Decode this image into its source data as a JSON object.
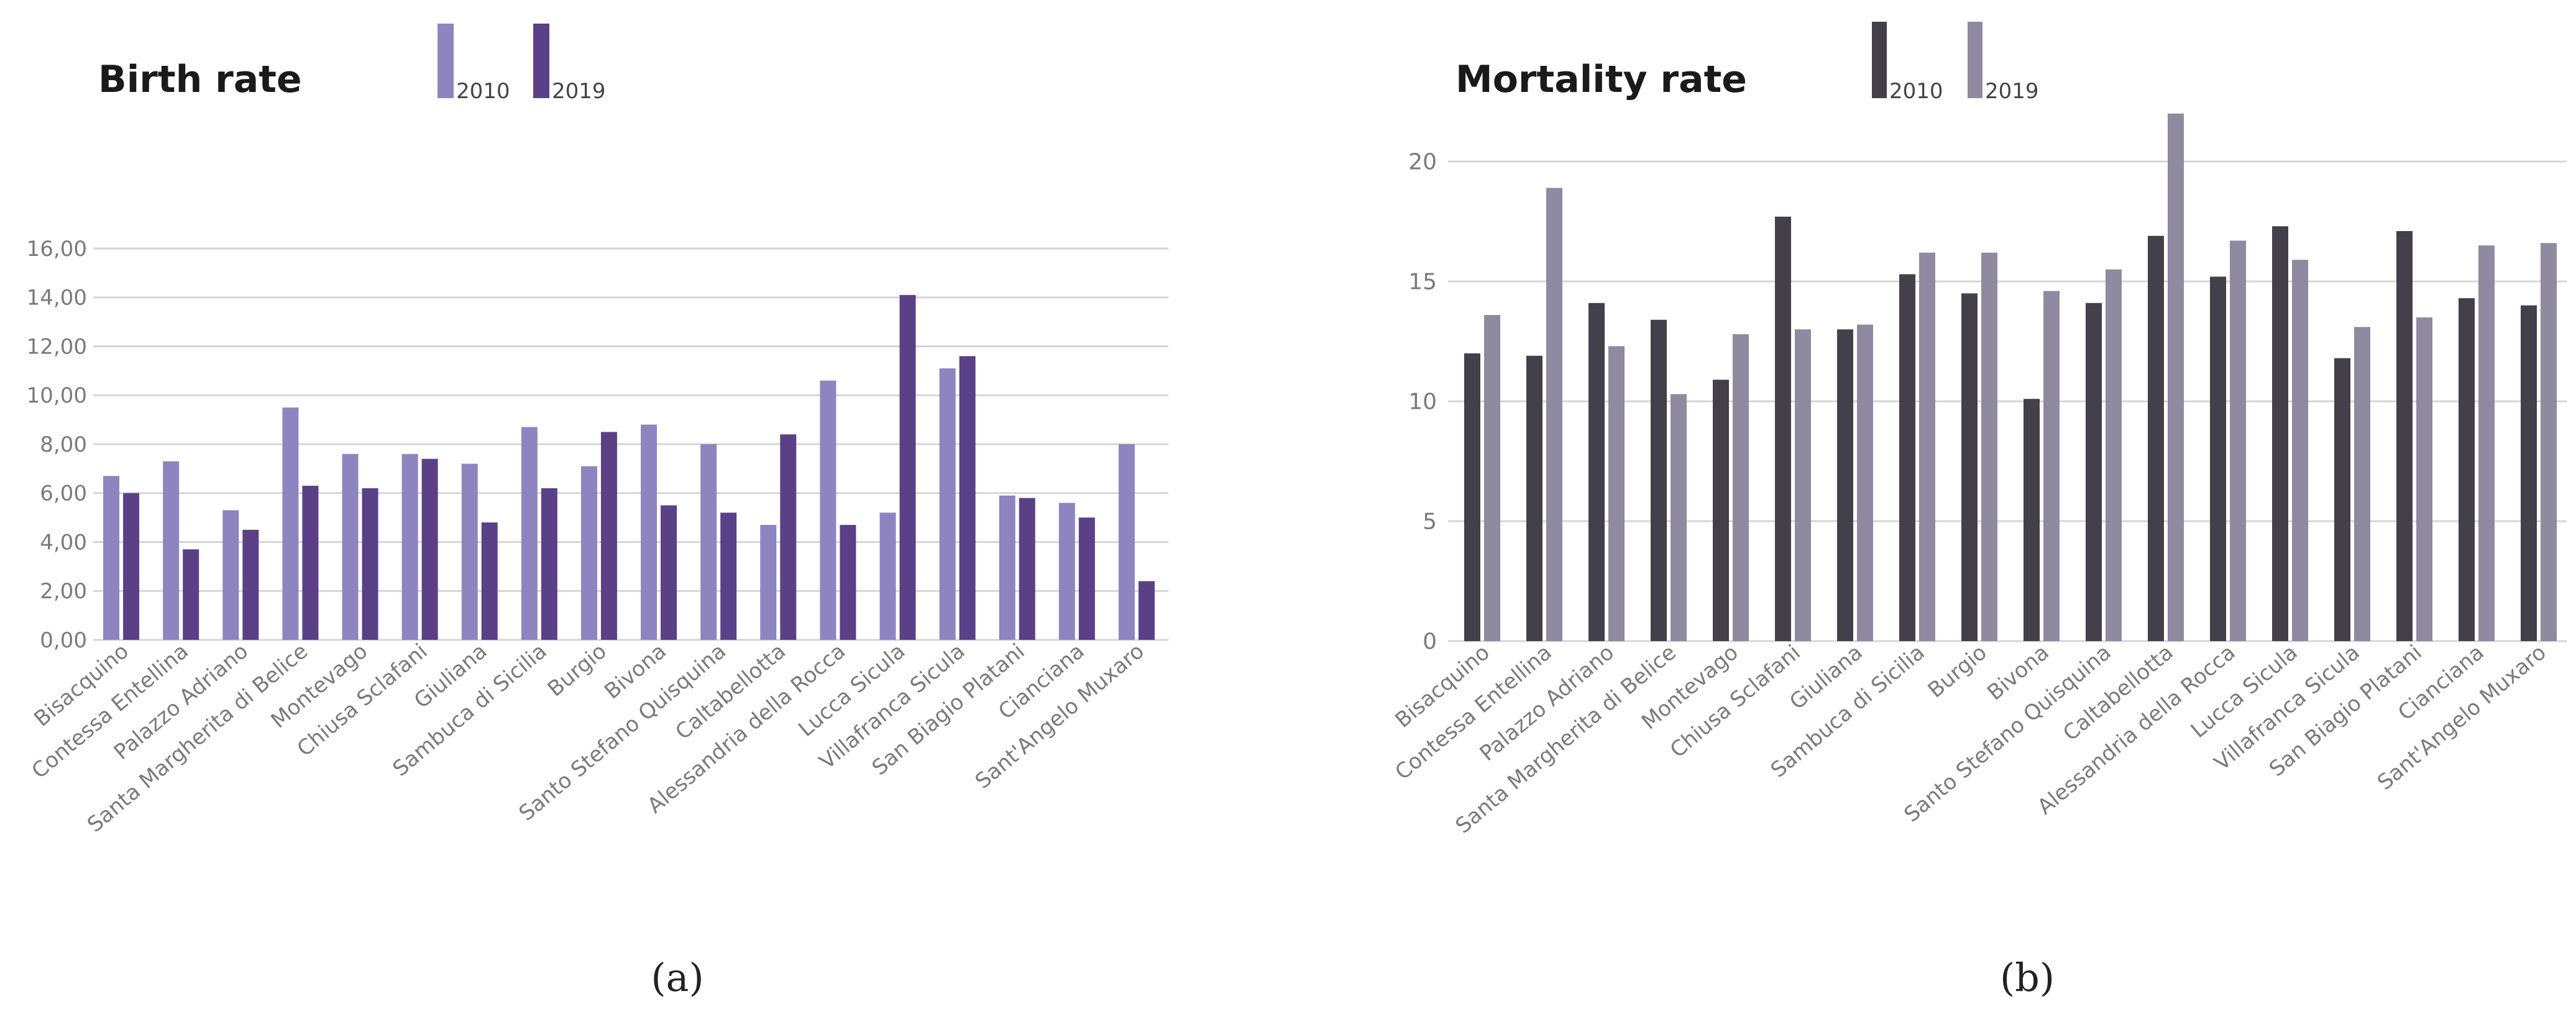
{
  "chart_data": [
    {
      "type": "bar",
      "title": "Birth rate",
      "caption": "(a)",
      "categories": [
        "Bisacquino",
        "Contessa Entellina",
        "Palazzo Adriano",
        "Santa Margherita di Belice",
        "Montevago",
        "Chiusa Sclafani",
        "Giuliana",
        "Sambuca di Sicilia",
        "Burgio",
        "Bivona",
        "Santo Stefano Quisquina",
        "Caltabellotta",
        "Alessandria della Rocca",
        "Lucca Sicula",
        "Villafranca Sicula",
        "San Biagio Platani",
        "Cianciana",
        "Sant'Angelo Muxaro"
      ],
      "series": [
        {
          "name": "2010",
          "color": "#8e85c0",
          "values": [
            6.7,
            7.3,
            5.3,
            9.5,
            7.6,
            7.6,
            7.2,
            8.7,
            7.1,
            8.8,
            8.0,
            4.7,
            10.6,
            5.2,
            11.1,
            5.9,
            5.6,
            8.0
          ]
        },
        {
          "name": "2019",
          "color": "#5a4187",
          "values": [
            6.0,
            3.7,
            4.5,
            6.3,
            6.2,
            7.4,
            4.8,
            6.2,
            8.5,
            5.5,
            5.2,
            8.4,
            4.7,
            14.1,
            11.6,
            5.8,
            5.0,
            2.4
          ]
        }
      ],
      "ylim": [
        0,
        16
      ],
      "yticks": [
        "0,00",
        "2,00",
        "4,00",
        "6,00",
        "8,00",
        "10,00",
        "12,00",
        "14,00",
        "16,00"
      ],
      "ytick_values": [
        0,
        2,
        4,
        6,
        8,
        10,
        12,
        14,
        16
      ],
      "legend": [
        "2010",
        "2019"
      ],
      "xlabel": "",
      "ylabel": ""
    },
    {
      "type": "bar",
      "title": "Mortality rate",
      "caption": "(b)",
      "categories": [
        "Bisacquino",
        "Contessa Entellina",
        "Palazzo Adriano",
        "Santa Margherita di Belice",
        "Montevago",
        "Chiusa Sclafani",
        "Giuliana",
        "Sambuca di Sicilia",
        "Burgio",
        "Bivona",
        "Santo Stefano Quisquina",
        "Caltabellotta",
        "Alessandria della Rocca",
        "Lucca Sicula",
        "Villafranca Sicula",
        "San Biagio Platani",
        "Cianciana",
        "Sant'Angelo Muxaro"
      ],
      "series": [
        {
          "name": "2010",
          "color": "#434049",
          "values": [
            12.0,
            11.9,
            14.1,
            13.4,
            10.9,
            17.7,
            13.0,
            15.3,
            14.5,
            10.1,
            14.1,
            16.9,
            15.2,
            17.3,
            11.8,
            17.1,
            14.3,
            14.0
          ]
        },
        {
          "name": "2019",
          "color": "#8f8a9f",
          "values": [
            13.6,
            18.9,
            12.3,
            10.3,
            12.8,
            13.0,
            13.2,
            16.2,
            16.2,
            14.6,
            15.5,
            22.0,
            16.7,
            15.9,
            13.1,
            13.5,
            16.5,
            16.6
          ]
        }
      ],
      "ylim": [
        0,
        22
      ],
      "yticks": [
        "0",
        "5",
        "10",
        "15",
        "20"
      ],
      "ytick_values": [
        0,
        5,
        10,
        15,
        20
      ],
      "legend": [
        "2010",
        "2019"
      ],
      "xlabel": "",
      "ylabel": ""
    }
  ]
}
